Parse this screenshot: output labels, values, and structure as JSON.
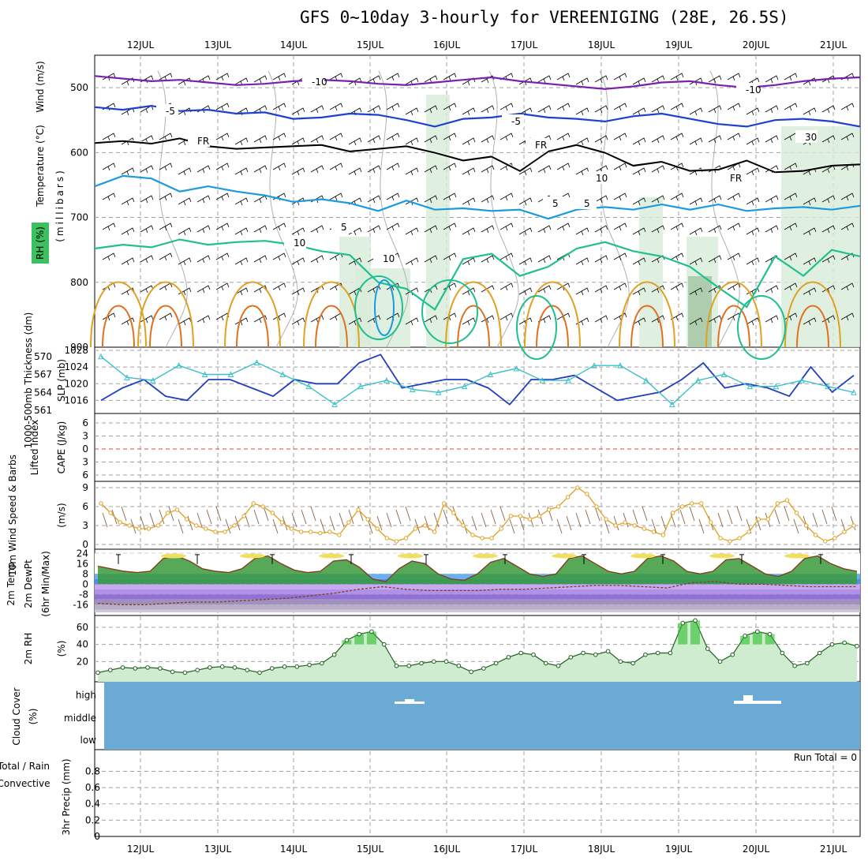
{
  "title": "GFS 0~10day 3-hourly for VEREENIGING (28E, 26.5S)",
  "date_labels": [
    "12JUL",
    "13JUL",
    "14JUL",
    "15JUL",
    "16JUL",
    "17JUL",
    "18JUL",
    "19JUL",
    "20JUL",
    "21JUL"
  ],
  "colors": {
    "purple": "#7a1fb0",
    "blue": "#1f3fd0",
    "lightblue": "#1a9ae0",
    "teal": "#1fbf90",
    "orange": "#e0a020",
    "darkorange": "#e07020",
    "cyan": "#3cc0c8",
    "slp": "#1f3fc0",
    "cloud": "#6aaad4",
    "rh_green": "#2ac02a",
    "grid": "#a0a0a0"
  },
  "chart_data": [
    {
      "type": "contour",
      "panel": "upper-air",
      "ylabel": "(millibars)",
      "side_labels": [
        "Wind (m/s)",
        "Temperature (°C)",
        "RH (%)"
      ],
      "y_ticks": [
        500,
        600,
        700,
        800,
        900
      ],
      "ylim": [
        900,
        450
      ],
      "contour_labels": [
        "-10",
        "-10",
        "-5",
        "-5",
        "FR",
        "FR",
        "FR",
        "5",
        "5",
        "5",
        "10",
        "10",
        "10",
        "30"
      ],
      "isotherms": [
        {
          "name": "-10",
          "color": "purple",
          "y": [
            482,
            486,
            490,
            488,
            492,
            496,
            494,
            490,
            488,
            490,
            494,
            496,
            492,
            488,
            484,
            490,
            494,
            498,
            502,
            498,
            492,
            490,
            496,
            500,
            496,
            490,
            486,
            484
          ]
        },
        {
          "name": "-5",
          "color": "blue",
          "y": [
            530,
            534,
            528,
            536,
            534,
            540,
            538,
            548,
            546,
            540,
            542,
            550,
            560,
            548,
            546,
            540,
            546,
            548,
            552,
            544,
            540,
            548,
            556,
            560,
            550,
            548,
            552,
            560
          ]
        },
        {
          "name": "FR",
          "color": "black",
          "y": [
            585,
            582,
            586,
            578,
            590,
            594,
            592,
            590,
            588,
            598,
            594,
            590,
            600,
            612,
            606,
            628,
            598,
            588,
            600,
            620,
            614,
            628,
            626,
            612,
            630,
            628,
            620,
            618
          ]
        },
        {
          "name": "5",
          "color": "lightblue",
          "y": [
            652,
            636,
            640,
            660,
            652,
            660,
            666,
            676,
            672,
            678,
            690,
            674,
            688,
            686,
            690,
            688,
            702,
            688,
            684,
            688,
            680,
            688,
            680,
            690,
            686,
            684,
            688,
            682
          ]
        },
        {
          "name": "10",
          "color": "teal",
          "y": [
            748,
            742,
            746,
            734,
            742,
            738,
            736,
            742,
            752,
            758,
            800,
            810,
            842,
            764,
            756,
            790,
            776,
            748,
            738,
            752,
            760,
            776,
            808,
            838,
            760,
            790,
            750,
            760
          ]
        }
      ]
    },
    {
      "type": "line",
      "panel": "thickness-slp",
      "ylabels": [
        "1000-500mb Thickness (dm)",
        "SLP (mb)"
      ],
      "left_ticks": [
        561,
        564,
        567,
        570
      ],
      "right_ticks": [
        1016,
        1020,
        1024,
        1028
      ],
      "series": [
        {
          "name": "SLP",
          "values": [
            1016,
            1019,
            1021,
            1017,
            1016,
            1021,
            1021,
            1019,
            1017,
            1021,
            1020,
            1020,
            1025,
            1027,
            1019,
            1020,
            1021,
            1021,
            1019,
            1015,
            1021,
            1021,
            1022,
            1019,
            1016,
            1017,
            1018,
            1021,
            1025,
            1019,
            1020,
            1019,
            1017,
            1024,
            1018,
            1022
          ]
        },
        {
          "name": "Thickness",
          "values": [
            570,
            566.5,
            566,
            568.5,
            567,
            567,
            569,
            567,
            565,
            562,
            565,
            566,
            564.5,
            564,
            565,
            567,
            568,
            566,
            566,
            568.5,
            568.5,
            566,
            562,
            566,
            567,
            565,
            565,
            566,
            565,
            564
          ]
        }
      ]
    },
    {
      "type": "line",
      "panel": "cape-li",
      "ylabels": [
        "Lifted Index",
        "CAPE (J/kg)"
      ],
      "y_ticks": [
        -6,
        -3,
        0,
        3,
        6
      ],
      "values": []
    },
    {
      "type": "line",
      "panel": "wind10m",
      "ylabels": [
        "10m Wind Speed & Barbs",
        "(m/s)"
      ],
      "y_ticks": [
        0,
        3,
        6,
        9
      ],
      "values": [
        6.5,
        5,
        3.5,
        3,
        2.5,
        2.5,
        3,
        5,
        5.5,
        4,
        3,
        2.5,
        2,
        2,
        3,
        4.5,
        6.5,
        6,
        5,
        3.5,
        2.5,
        2,
        2,
        1.8,
        2,
        1.5,
        3.5,
        5.5,
        4,
        2.5,
        1,
        0.5,
        1,
        2.5,
        3,
        2,
        6.5,
        5,
        3,
        1.5,
        1,
        1,
        2.5,
        4.5,
        4.5,
        4,
        4.5,
        5.5,
        6,
        7.5,
        9,
        8,
        6,
        4,
        3,
        3.5,
        3,
        2.5,
        2,
        1.5,
        5,
        6,
        6.5,
        6.5,
        3.5,
        1,
        0.5,
        1,
        2,
        4,
        4,
        6.5,
        7,
        5,
        3,
        1.5,
        0.5,
        1,
        2,
        3
      ]
    },
    {
      "type": "area",
      "panel": "temperature",
      "ylabels": [
        "2m Temp",
        "2m DewPt",
        "(6hr Min/Max)"
      ],
      "y_ticks": [
        -16,
        -8,
        0,
        8,
        16,
        24
      ],
      "temp_values": [
        14,
        12,
        10,
        9,
        10,
        20,
        22,
        18,
        12,
        10,
        9,
        12,
        20,
        22,
        16,
        11,
        9,
        10,
        18,
        19,
        13,
        4,
        2,
        12,
        18,
        16,
        8,
        4,
        3,
        8,
        17,
        20,
        14,
        8,
        6,
        8,
        20,
        22,
        16,
        10,
        8,
        10,
        20,
        22,
        18,
        10,
        8,
        10,
        19,
        20,
        14,
        8,
        6,
        10,
        20,
        22,
        16,
        12,
        10
      ],
      "dewpoint_values": [
        -15,
        -16,
        -16,
        -15,
        -14,
        -14,
        -13,
        -12,
        -11,
        -9,
        -7,
        -4,
        -2,
        -4,
        -5,
        -5,
        -5,
        -4,
        -4,
        -3,
        -2,
        -1,
        -1,
        -2,
        -3,
        1,
        2,
        0,
        0,
        -1,
        -2,
        -2,
        -2
      ]
    },
    {
      "type": "area",
      "panel": "rh2m",
      "ylabels": [
        "2m RH",
        "(%)"
      ],
      "y_ticks": [
        20,
        40,
        60
      ],
      "values": [
        7,
        10,
        13,
        12,
        13,
        12,
        8,
        7,
        10,
        13,
        14,
        13,
        10,
        7,
        12,
        14,
        14,
        16,
        18,
        28,
        45,
        52,
        55,
        40,
        15,
        15,
        18,
        20,
        20,
        15,
        8,
        12,
        18,
        25,
        30,
        28,
        18,
        15,
        25,
        30,
        28,
        32,
        20,
        18,
        28,
        30,
        30,
        65,
        68,
        35,
        20,
        28,
        50,
        55,
        52,
        30,
        15,
        18,
        30,
        40,
        42,
        38
      ]
    },
    {
      "type": "heatmap",
      "panel": "cloud",
      "ylabels": [
        "Cloud Cover",
        "(%)"
      ],
      "levels": [
        "high",
        "middle",
        "low"
      ]
    },
    {
      "type": "bar",
      "panel": "precip",
      "ylabels": [
        "Total / Rain",
        "Convective",
        "3hr Precip (mm)"
      ],
      "y_ticks": [
        0,
        0.2,
        0.4,
        0.6,
        0.8
      ],
      "run_total": "Run Total = 0",
      "values": []
    }
  ]
}
